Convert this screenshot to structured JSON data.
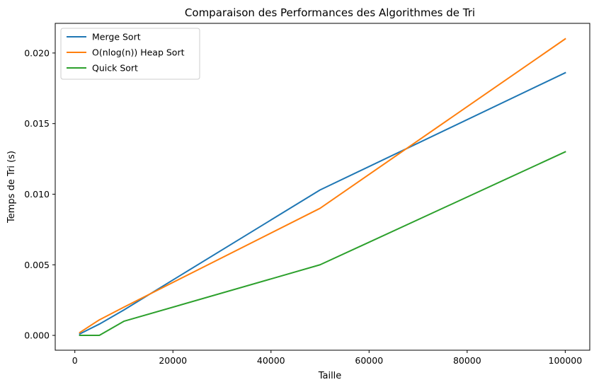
{
  "chart_data": {
    "type": "line",
    "title": "Comparaison des Performances des Algorithmes de Tri",
    "xlabel": "Taille",
    "ylabel": "Temps de Tri (s)",
    "x": [
      1000,
      5000,
      10000,
      50000,
      100000
    ],
    "xlim": [
      -4000,
      105000
    ],
    "ylim": [
      -0.00105,
      0.0221
    ],
    "xticks": [
      0,
      20000,
      40000,
      60000,
      80000,
      100000
    ],
    "xtick_labels": [
      "0",
      "20000",
      "40000",
      "60000",
      "80000",
      "100000"
    ],
    "yticks": [
      0.0,
      0.005,
      0.01,
      0.015,
      0.02
    ],
    "ytick_labels": [
      "0.000",
      "0.005",
      "0.010",
      "0.015",
      "0.020"
    ],
    "grid": false,
    "legend_position": "top-left",
    "series": [
      {
        "name": "Merge Sort",
        "color": "#1f77b4",
        "values": [
          0.0001,
          0.0008,
          0.0018,
          0.0103,
          0.0186
        ]
      },
      {
        "name": "O(nlog(n)) Heap Sort",
        "color": "#ff7f0e",
        "values": [
          0.0002,
          0.0011,
          0.002,
          0.009,
          0.021
        ]
      },
      {
        "name": "Quick Sort",
        "color": "#2ca02c",
        "values": [
          0.0,
          0.0,
          0.001,
          0.005,
          0.013
        ]
      }
    ]
  }
}
